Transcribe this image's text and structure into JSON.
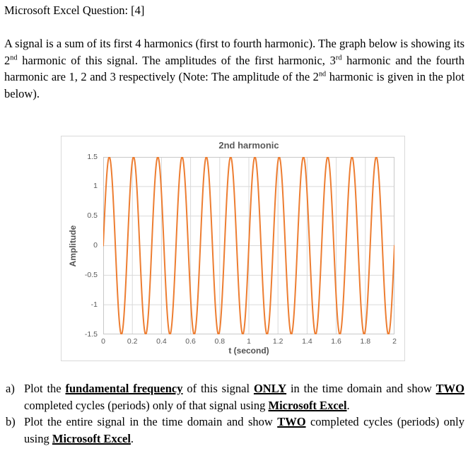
{
  "header": {
    "title": "Microsoft Excel Question: [4]"
  },
  "intro": {
    "segments": [
      {
        "t": "A signal is a sum of its first 4 harmonics (first to fourth harmonic). The graph below is showing its 2"
      },
      {
        "t": "nd",
        "sup": true
      },
      {
        "t": " harmonic of this signal. The amplitudes of the first harmonic, 3"
      },
      {
        "t": "rd",
        "sup": true
      },
      {
        "t": " harmonic and the fourth harmonic are 1, 2 and 3 respectively (Note: The amplitude of the 2"
      },
      {
        "t": "nd",
        "sup": true
      },
      {
        "t": " harmonic is given in the plot below)."
      }
    ]
  },
  "chart": {
    "title": "2nd harmonic",
    "x_axis_title": "t (second)",
    "y_axis_title": "Amplitude",
    "colors": {
      "line": "#ED7D31",
      "grid": "#D9D9D9",
      "plot_border": "#C8C8C8",
      "chart_border": "#D9D9D9",
      "text": "#595959"
    }
  },
  "chart_data": {
    "type": "line",
    "title": "2nd harmonic",
    "xlabel": "t (second)",
    "ylabel": "Amplitude",
    "xlim": [
      0,
      2
    ],
    "ylim": [
      -1.5,
      1.5
    ],
    "x_ticks": [
      0,
      0.2,
      0.4,
      0.6,
      0.8,
      1,
      1.2,
      1.4,
      1.6,
      1.8,
      2
    ],
    "y_ticks": [
      1.5,
      1,
      0.5,
      0,
      -0.5,
      -1,
      -1.5
    ],
    "grid": true,
    "legend": false,
    "line_color": "#ED7D31",
    "series": [
      {
        "name": "2nd harmonic",
        "formula": "y = 1.5*sin(2*pi*6*t)",
        "amplitude": 1.5,
        "frequency_hz": 6,
        "t_start": 0,
        "t_end": 2,
        "cycles_shown": 12,
        "value_at_t0": 0
      }
    ]
  },
  "tasks": {
    "a": {
      "label": "a)",
      "segments": [
        {
          "t": "Plot the "
        },
        {
          "t": "fundamental frequency",
          "bu": true
        },
        {
          "t": " of this signal "
        },
        {
          "t": "ONLY",
          "bu": true
        },
        {
          "t": " in the time domain and show "
        },
        {
          "t": "TWO",
          "bu": true
        },
        {
          "t": " completed cycles (periods) only of that signal using "
        },
        {
          "t": "Microsoft Excel",
          "bu": true
        },
        {
          "t": "."
        }
      ]
    },
    "b": {
      "label": "b)",
      "segments": [
        {
          "t": "Plot the entire signal in the time domain and show "
        },
        {
          "t": "TWO",
          "bu": true
        },
        {
          "t": " completed cycles (periods) only using "
        },
        {
          "t": "Microsoft Excel",
          "bu": true
        },
        {
          "t": "."
        }
      ]
    }
  }
}
